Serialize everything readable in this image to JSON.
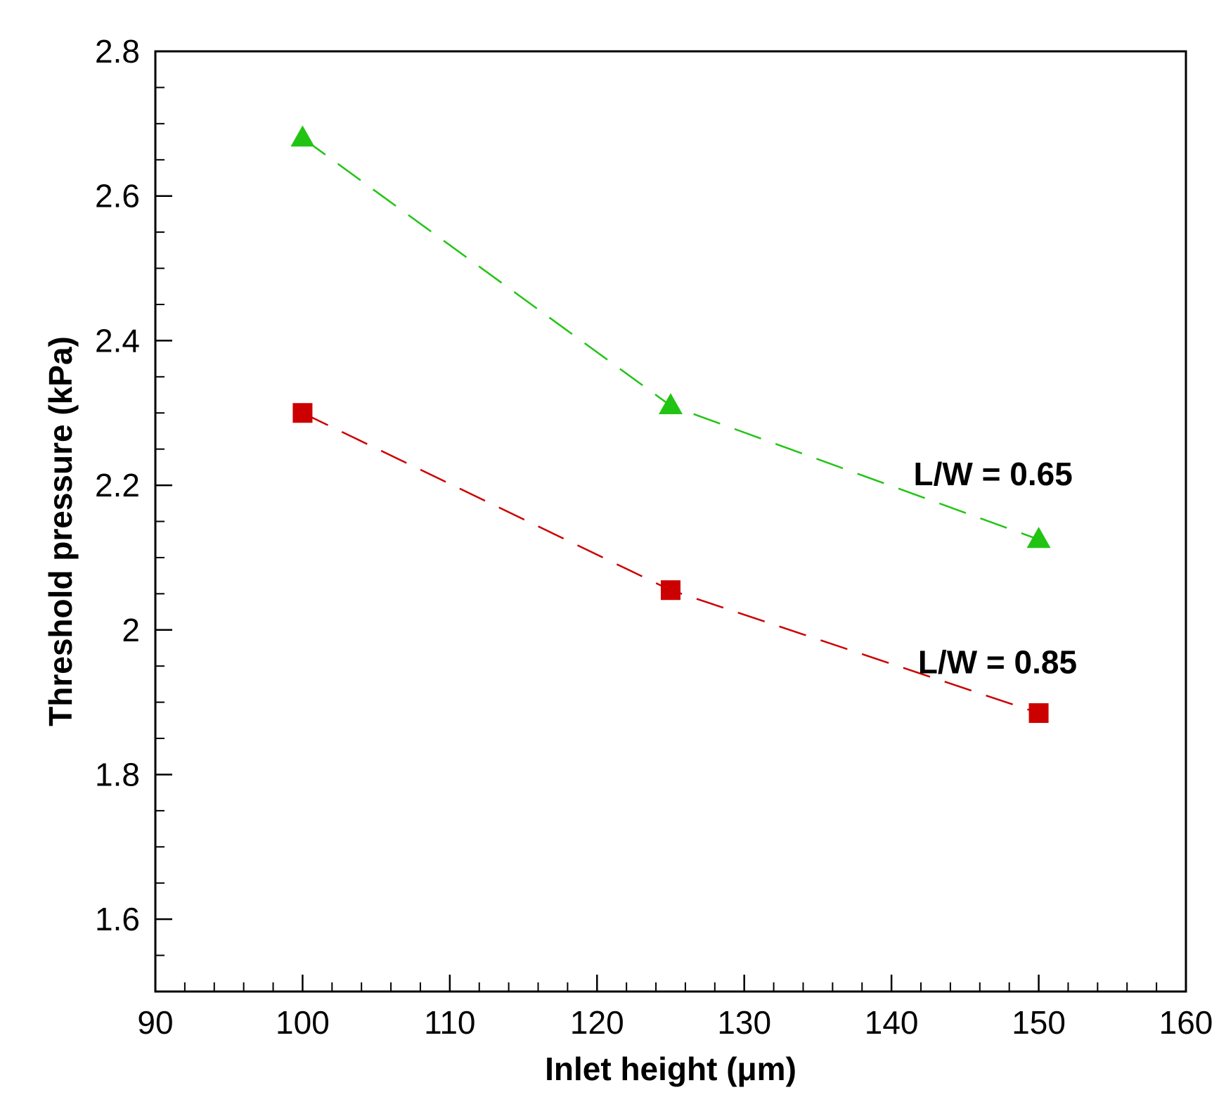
{
  "chart_data": {
    "type": "line",
    "title": "",
    "xlabel": "Inlet height (μm)",
    "ylabel": "Threshold pressure (kPa)",
    "xlim": [
      90,
      160
    ],
    "ylim": [
      1.5,
      2.8
    ],
    "x_ticks": [
      90,
      100,
      110,
      120,
      130,
      140,
      150,
      160
    ],
    "x_tick_labels": [
      "90",
      "100",
      "110",
      "120",
      "130",
      "140",
      "150",
      "160"
    ],
    "x_minor_step": 2,
    "y_ticks": [
      1.6,
      1.8,
      2.0,
      2.2,
      2.4,
      2.6,
      2.8
    ],
    "y_tick_labels": [
      "1.6",
      "1.8",
      "2",
      "2.2",
      "2.4",
      "2.6",
      "2.8"
    ],
    "y_minor_step": 0.05,
    "grid": false,
    "legend": "none",
    "series": [
      {
        "name": "L/W = 0.65",
        "x": [
          100,
          125,
          150
        ],
        "values": [
          2.68,
          2.31,
          2.125
        ],
        "color": "#22c414",
        "marker": "triangle",
        "line_style": "dashed"
      },
      {
        "name": "L/W = 0.85",
        "x": [
          100,
          125,
          150
        ],
        "values": [
          2.3,
          2.055,
          1.885
        ],
        "color": "#cc0000",
        "marker": "square",
        "line_style": "dashed"
      }
    ],
    "annotations": [
      {
        "text": "L/W = 0.65",
        "series": "L/W = 0.65",
        "x": 141.5,
        "y": 2.2
      },
      {
        "text": "L/W = 0.85",
        "series": "L/W = 0.85",
        "x": 141.8,
        "y": 1.94
      }
    ]
  }
}
